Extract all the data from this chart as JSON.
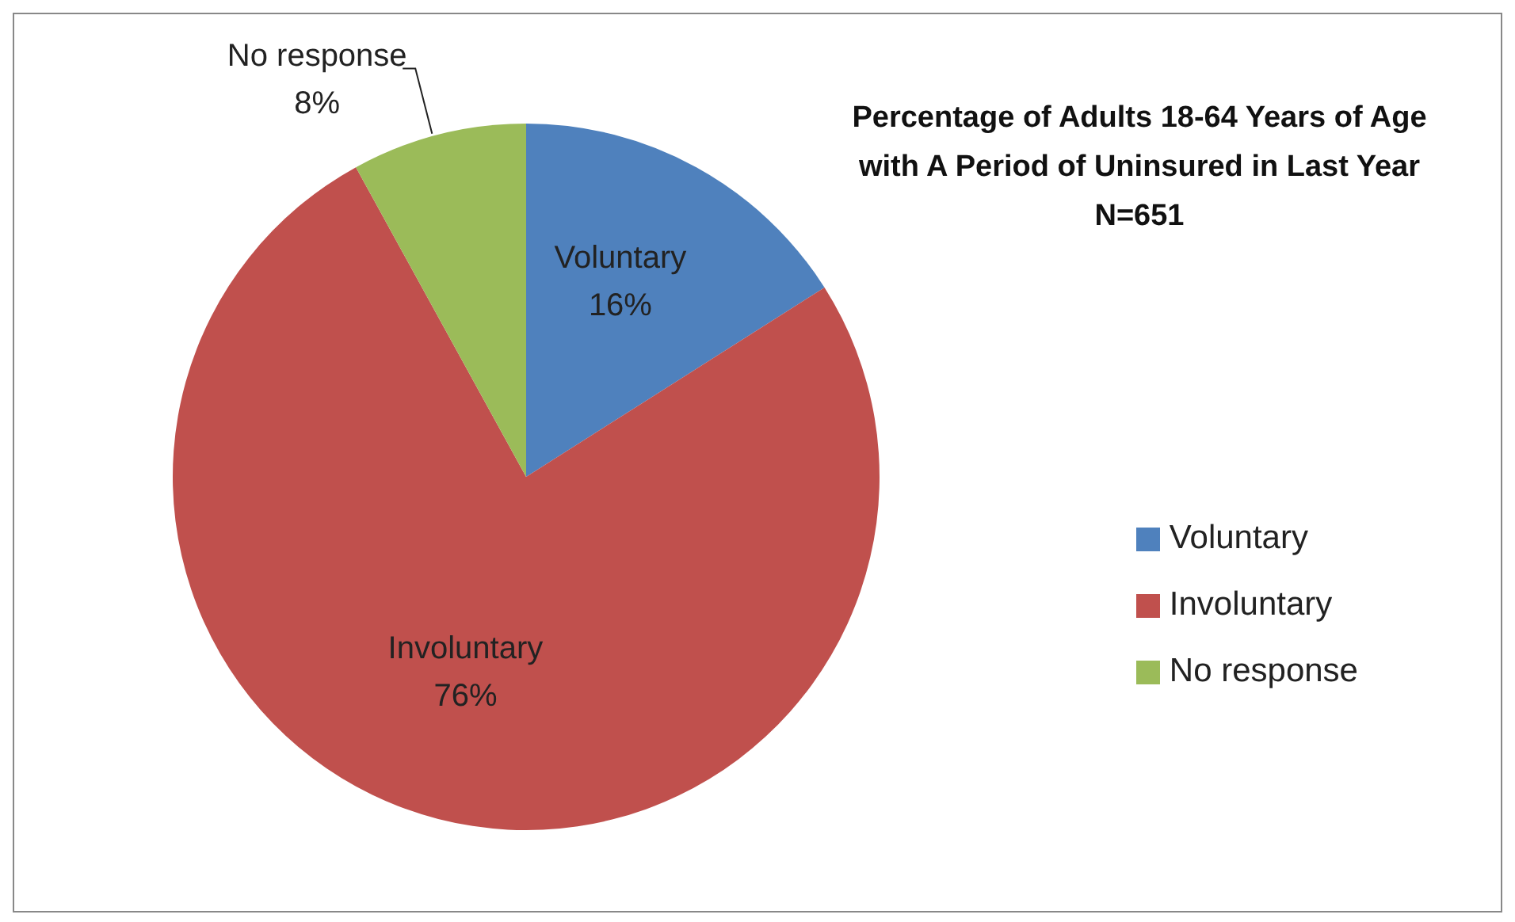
{
  "chart_data": {
    "type": "pie",
    "title": "Percentage of Adults 18-64 Years of Age\nwith A Period of Uninsured in Last Year\nN=651",
    "categories": [
      "Voluntary",
      "Involuntary",
      "No response"
    ],
    "values": [
      16,
      76,
      8
    ],
    "colors": [
      "#4f81bd",
      "#c0504d",
      "#9bbb59"
    ],
    "value_labels": [
      "16%",
      "76%",
      "8%"
    ],
    "legend": "right"
  }
}
